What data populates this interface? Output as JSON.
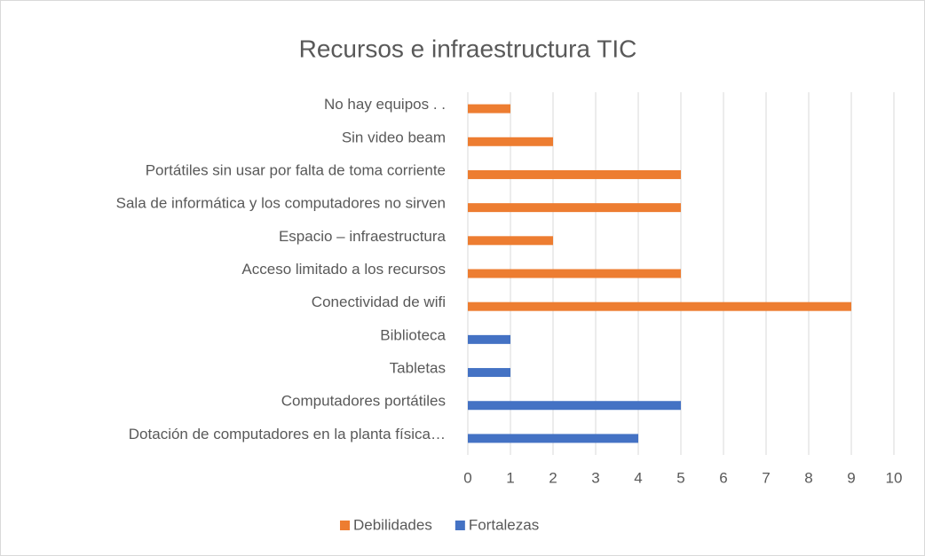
{
  "chart_data": {
    "type": "bar",
    "orientation": "horizontal",
    "title": "Recursos e infraestructura TIC",
    "categories": [
      "No hay equipos . .",
      "Sin video beam",
      "Portátiles sin usar por falta de toma corriente",
      "Sala de informática y los computadores no sirven",
      "Espacio – infraestructura",
      "Acceso limitado a los recursos",
      "Conectividad de wifi",
      "Biblioteca",
      "Tabletas",
      "Computadores portátiles",
      "Dotación de computadores en la planta física…"
    ],
    "series": [
      {
        "name": "Debilidades",
        "color": "#ed7d31",
        "values": [
          1,
          2,
          5,
          5,
          2,
          5,
          9,
          null,
          null,
          null,
          null
        ]
      },
      {
        "name": "Fortalezas",
        "color": "#4472c4",
        "values": [
          null,
          null,
          null,
          null,
          null,
          null,
          null,
          1,
          1,
          5,
          4
        ]
      }
    ],
    "xlim": [
      0,
      10
    ],
    "xticks": [
      0,
      1,
      2,
      3,
      4,
      5,
      6,
      7,
      8,
      9,
      10
    ],
    "grid": true,
    "legend": "bottom"
  }
}
